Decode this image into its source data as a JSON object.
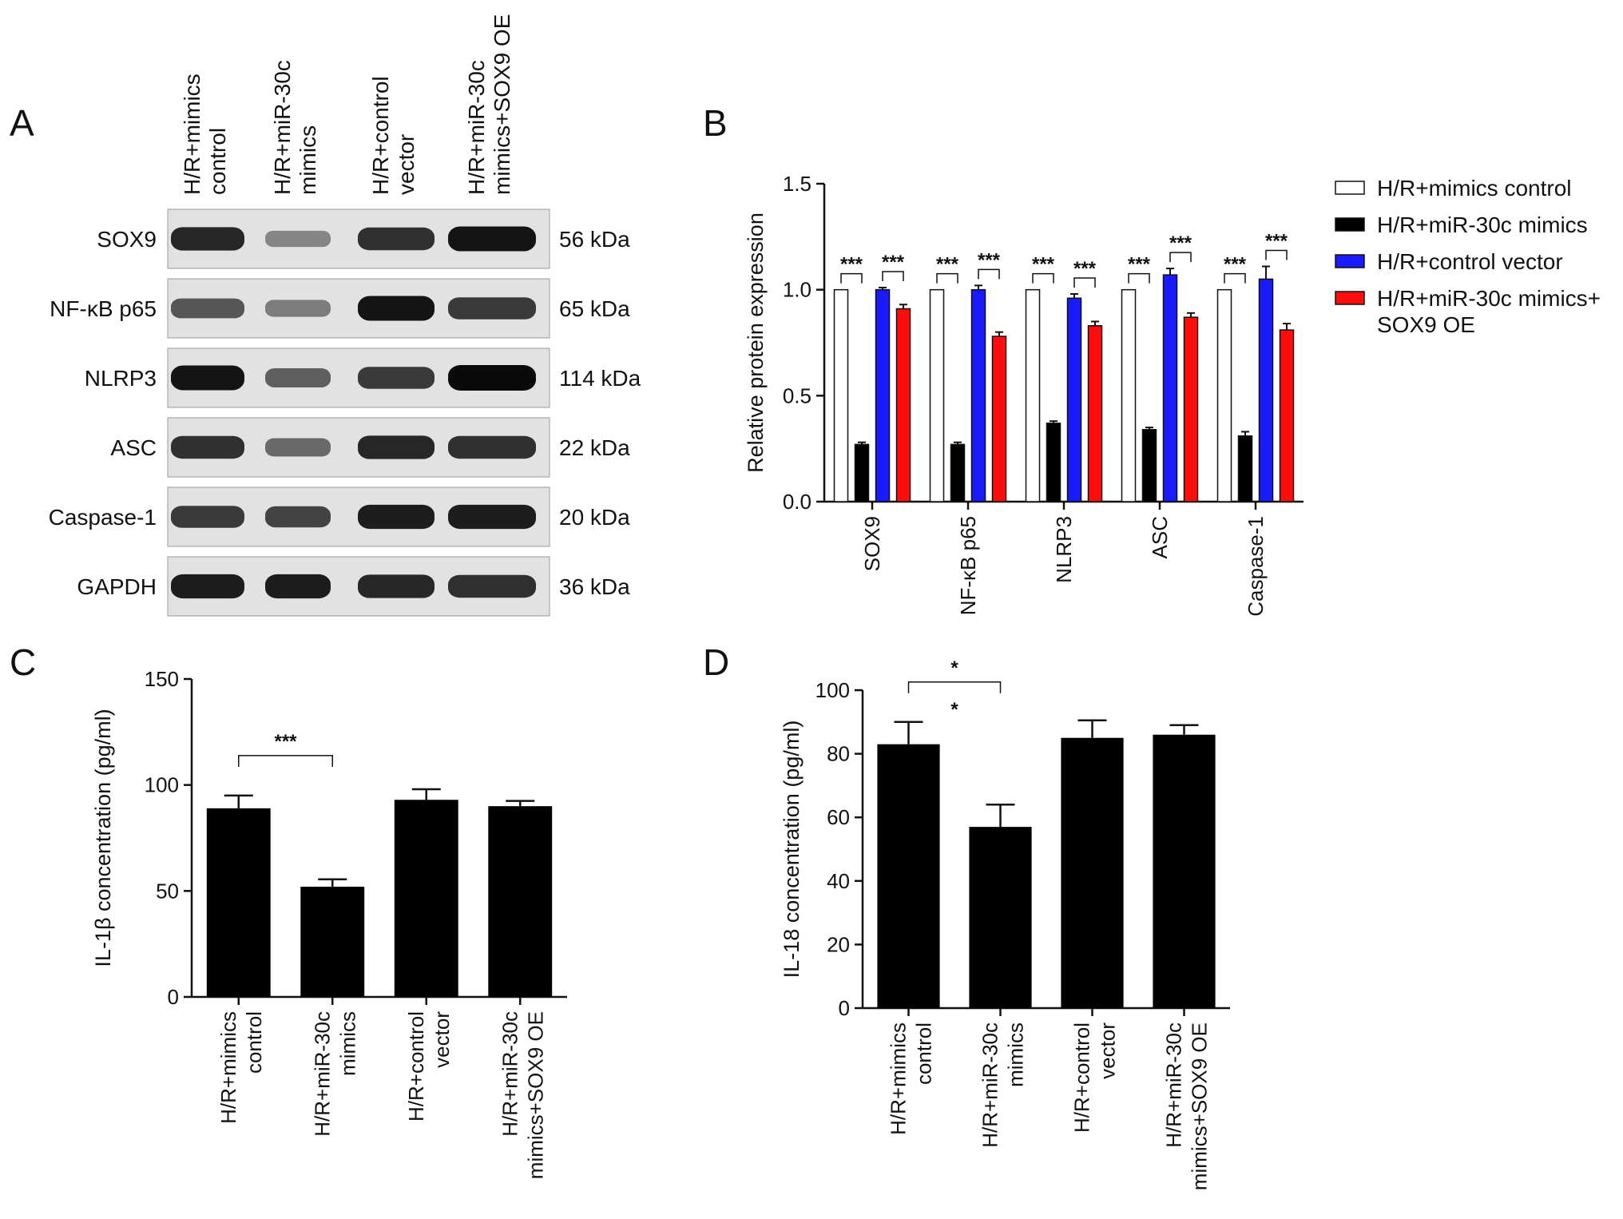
{
  "panels": {
    "A": {
      "letter": "A",
      "lanes": [
        [
          "H/R+mimics",
          "control"
        ],
        [
          "H/R+miR-30c",
          "mimics"
        ],
        [
          "H/R+control",
          "vector"
        ],
        [
          "H/R+miR-30c",
          "mimics+SOX9 OE"
        ]
      ],
      "rows": [
        {
          "protein": "SOX9",
          "kda": "56 kDa",
          "intensity": [
            0.85,
            0.35,
            0.8,
            0.95
          ]
        },
        {
          "protein": "NF-κB p65",
          "kda": "65 kDa",
          "intensity": [
            0.6,
            0.4,
            0.95,
            0.75
          ]
        },
        {
          "protein": "NLRP3",
          "kda": "114 kDa",
          "intensity": [
            0.95,
            0.55,
            0.75,
            1.0
          ]
        },
        {
          "protein": "ASC",
          "kda": "22 kDa",
          "intensity": [
            0.8,
            0.5,
            0.85,
            0.8
          ]
        },
        {
          "protein": "Caspase-1",
          "kda": "20 kDa",
          "intensity": [
            0.75,
            0.7,
            0.9,
            0.9
          ]
        },
        {
          "protein": "GAPDH",
          "kda": "36 kDa",
          "intensity": [
            0.9,
            0.9,
            0.85,
            0.8
          ]
        }
      ]
    },
    "B": {
      "letter": "B"
    },
    "C": {
      "letter": "C"
    },
    "D": {
      "letter": "D"
    }
  },
  "chart_data": [
    {
      "id": "B",
      "type": "bar",
      "ylabel": "Relative protein expression",
      "ylim": [
        0,
        1.5
      ],
      "yticks": [
        "0.0",
        "0.5",
        "1.0",
        "1.5"
      ],
      "categories": [
        "SOX9",
        "NF-κB p65",
        "NLRP3",
        "ASC",
        "Caspase-1"
      ],
      "series": [
        {
          "name": "H/R+mimics control",
          "color": "#ffffff",
          "values": [
            1.0,
            1.0,
            1.0,
            1.0,
            1.0
          ],
          "errors": [
            0,
            0,
            0,
            0,
            0
          ]
        },
        {
          "name": "H/R+miR-30c mimics",
          "color": "#000000",
          "values": [
            0.27,
            0.27,
            0.37,
            0.34,
            0.31
          ],
          "errors": [
            0.01,
            0.01,
            0.01,
            0.01,
            0.02
          ]
        },
        {
          "name": "H/R+control vector",
          "color": "#1a1aff",
          "values": [
            1.0,
            1.0,
            0.96,
            1.07,
            1.05
          ],
          "errors": [
            0.01,
            0.02,
            0.02,
            0.03,
            0.06
          ]
        },
        {
          "name_lines": [
            "H/R+miR-30c mimics+",
            "SOX9 OE"
          ],
          "color": "#ff0d0d",
          "values": [
            0.91,
            0.78,
            0.83,
            0.87,
            0.81
          ],
          "errors": [
            0.02,
            0.02,
            0.02,
            0.02,
            0.03
          ]
        }
      ],
      "significance": "***",
      "legend_position": "right"
    },
    {
      "id": "C",
      "type": "bar",
      "ylabel": "IL-1β concentration (pg/ml)",
      "ylim": [
        0,
        150
      ],
      "yticks": [
        "0",
        "50",
        "100",
        "150"
      ],
      "categories": [
        [
          "H/R+mimics",
          "control"
        ],
        [
          "H/R+miR-30c",
          "mimics"
        ],
        [
          "H/R+control",
          "vector"
        ],
        [
          "H/R+miR-30c",
          "mimics+SOX9 OE"
        ]
      ],
      "values": [
        89,
        52,
        93,
        90
      ],
      "errors": [
        6,
        3.5,
        5,
        2.5
      ],
      "significance": {
        "pair": [
          0,
          1
        ],
        "label": "***"
      },
      "color": "#000000"
    },
    {
      "id": "D",
      "type": "bar",
      "ylabel": "IL-18 concentration (pg/ml)",
      "ylim": [
        0,
        100
      ],
      "yticks": [
        "0",
        "20",
        "40",
        "60",
        "80",
        "100"
      ],
      "categories": [
        [
          "H/R+mimics",
          "control"
        ],
        [
          "H/R+miR-30c",
          "mimics"
        ],
        [
          "H/R+control",
          "vector"
        ],
        [
          "H/R+miR-30c",
          "mimics+SOX9 OE"
        ]
      ],
      "values": [
        83,
        57,
        85,
        86
      ],
      "errors": [
        7,
        7,
        5.5,
        3
      ],
      "significance": {
        "pair": [
          0,
          1
        ],
        "label": "*"
      },
      "color": "#000000"
    }
  ]
}
